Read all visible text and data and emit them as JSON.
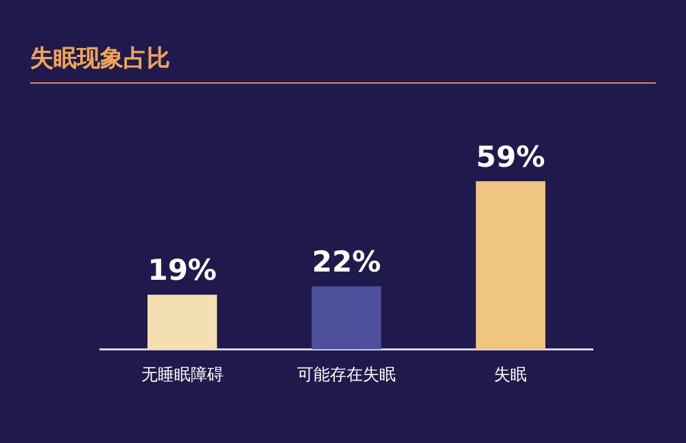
{
  "chart_data": {
    "type": "bar",
    "title": "失眠现象占比",
    "categories": [
      "无睡眠障碍",
      "可能存在失眠",
      "失眠"
    ],
    "values": [
      19,
      22,
      59
    ],
    "colors": [
      "#f4dfb2",
      "#4e4f9b",
      "#f0c481"
    ],
    "value_labels": [
      "19%",
      "22%",
      "59%"
    ],
    "grid": false,
    "legend": false,
    "tick_labels": "x"
  }
}
